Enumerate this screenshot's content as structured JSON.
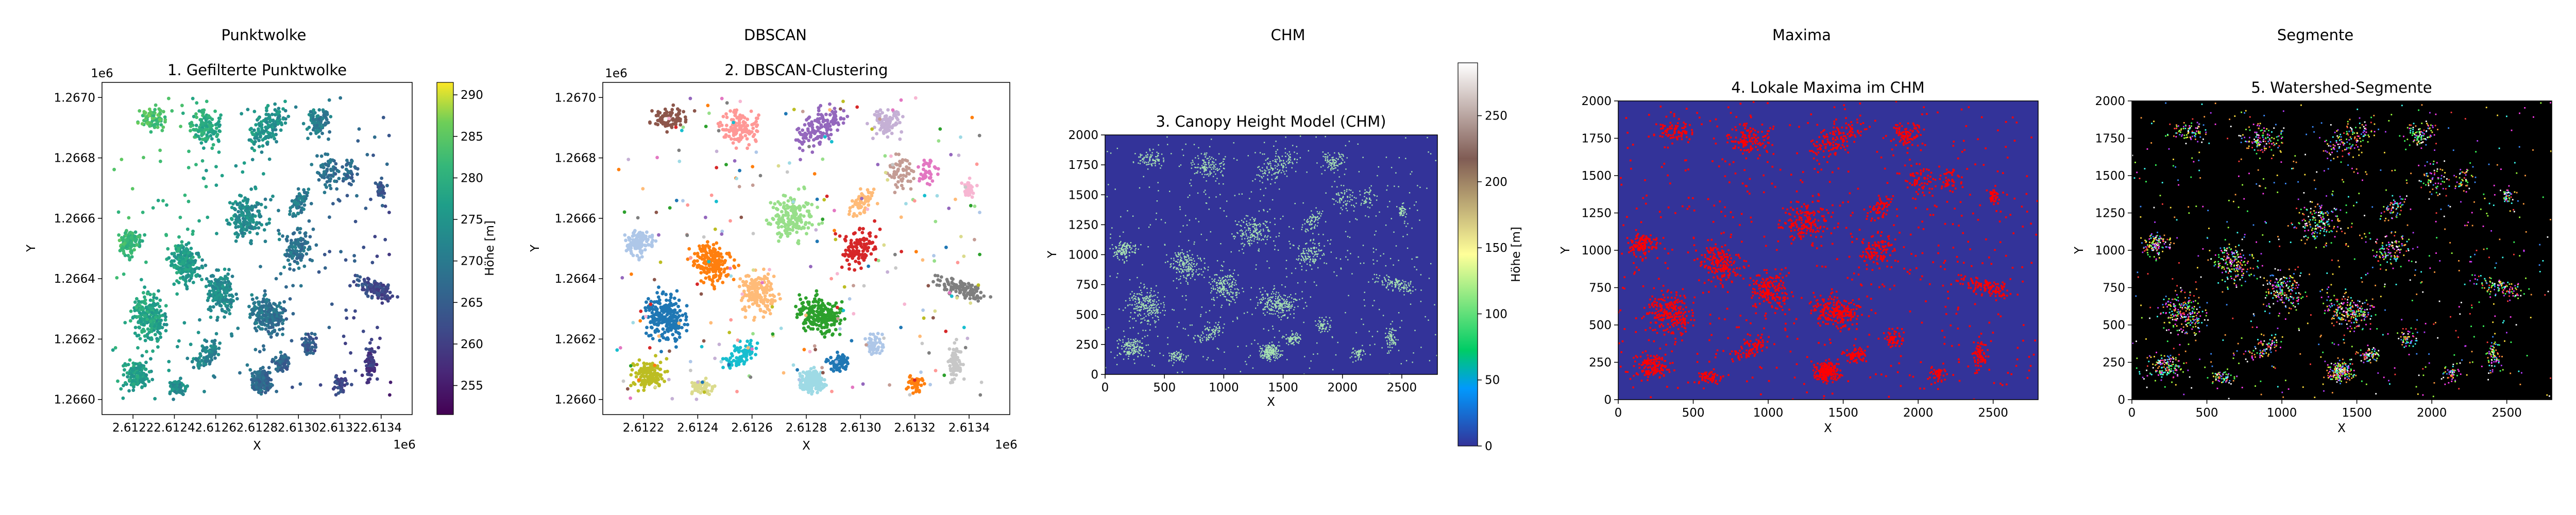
{
  "chart_data": [
    {
      "type": "scatter",
      "panel_title": "Punktwolke",
      "title": "1. Gefilterte Punktwolke",
      "xlabel": "X",
      "ylabel": "Y",
      "x_offset_label": "1e6",
      "y_offset_label": "1e6",
      "xlim": [
        2.61205,
        2.61355
      ],
      "ylim": [
        1.26595,
        1.26705
      ],
      "xticks": [
        2.6122,
        2.6124,
        2.6126,
        2.6128,
        2.613,
        2.6132,
        2.6134
      ],
      "xtick_labels": [
        "2.6122",
        "2.6124",
        "2.6126",
        "2.6128",
        "2.6130",
        "2.6132",
        "2.6134"
      ],
      "yticks": [
        1.266,
        1.2662,
        1.2664,
        1.2666,
        1.2668,
        1.267
      ],
      "ytick_labels": [
        "1.2660",
        "1.2662",
        "1.2664",
        "1.2666",
        "1.2668",
        "1.2670"
      ],
      "colorbar": {
        "label": "Höhe [m]",
        "colormap": "viridis",
        "range": [
          251.5,
          291.5
        ],
        "ticks": [
          255,
          260,
          265,
          270,
          275,
          280,
          285,
          290
        ]
      },
      "grid": false
    },
    {
      "type": "scatter",
      "panel_title": "DBSCAN",
      "title": "2. DBSCAN-Clustering",
      "xlabel": "X",
      "ylabel": "Y",
      "x_offset_label": "1e6",
      "y_offset_label": "1e6",
      "xlim": [
        2.61205,
        2.61355
      ],
      "ylim": [
        1.26595,
        1.26705
      ],
      "xticks": [
        2.6122,
        2.6124,
        2.6126,
        2.6128,
        2.613,
        2.6132,
        2.6134
      ],
      "xtick_labels": [
        "2.6122",
        "2.6124",
        "2.6126",
        "2.6128",
        "2.6130",
        "2.6132",
        "2.6134"
      ],
      "yticks": [
        1.266,
        1.2662,
        1.2664,
        1.2666,
        1.2668,
        1.267
      ],
      "ytick_labels": [
        "1.2660",
        "1.2662",
        "1.2664",
        "1.2666",
        "1.2668",
        "1.2670"
      ],
      "colors": [
        "#1f77b4",
        "#aec7e8",
        "#ff7f0e",
        "#ffbb78",
        "#2ca02c",
        "#98df8a",
        "#d62728",
        "#ff9896",
        "#9467bd",
        "#c5b0d5",
        "#8c564b",
        "#c49c94",
        "#e377c2",
        "#f7b6d2",
        "#7f7f7f",
        "#c7c7c7",
        "#bcbd22",
        "#dbdb8d",
        "#17becf",
        "#9edae5"
      ],
      "grid": false
    },
    {
      "type": "heatmap",
      "panel_title": "CHM",
      "title": "3. Canopy Height Model (CHM)",
      "xlabel": "X",
      "ylabel": "Y",
      "xlim": [
        0,
        2800
      ],
      "ylim": [
        0,
        2000
      ],
      "xticks": [
        0,
        500,
        1000,
        1500,
        2000,
        2500
      ],
      "yticks": [
        0,
        250,
        500,
        750,
        1000,
        1250,
        1500,
        1750,
        2000
      ],
      "colorbar": {
        "label": "Höhe [m]",
        "colormap": "terrain",
        "range": [
          0,
          290
        ],
        "ticks": [
          0,
          50,
          100,
          150,
          200,
          250
        ]
      },
      "background_color": "#333399",
      "grid": false
    },
    {
      "type": "heatmap",
      "panel_title": "Maxima",
      "title": "4. Lokale Maxima im CHM",
      "xlabel": "X",
      "ylabel": "Y",
      "xlim": [
        0,
        2800
      ],
      "ylim": [
        0,
        2000
      ],
      "xticks": [
        0,
        500,
        1000,
        1500,
        2000,
        2500
      ],
      "yticks": [
        0,
        250,
        500,
        750,
        1000,
        1250,
        1500,
        1750,
        2000
      ],
      "background_color": "#333399",
      "marker_color": "#ff0000",
      "grid": false
    },
    {
      "type": "heatmap",
      "panel_title": "Segmente",
      "title": "5. Watershed-Segmente",
      "xlabel": "X",
      "ylabel": "Y",
      "xlim": [
        0,
        2800
      ],
      "ylim": [
        0,
        2000
      ],
      "xticks": [
        0,
        500,
        1000,
        1500,
        2000,
        2500
      ],
      "yticks": [
        0,
        250,
        500,
        750,
        1000,
        1250,
        1500,
        1750,
        2000
      ],
      "background_color": "#000000",
      "colormap": "random label colors",
      "grid": false
    }
  ]
}
